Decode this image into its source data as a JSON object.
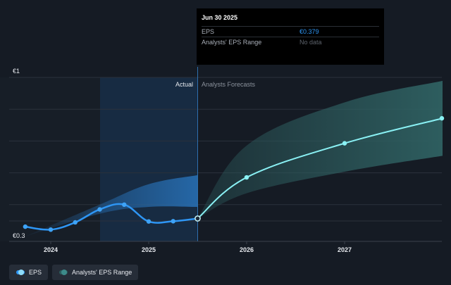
{
  "chart_data": {
    "type": "line",
    "currency": "€",
    "y_axis": {
      "max_label": "€1",
      "min_label": "€0.3",
      "ylim": [
        0.3,
        1.0
      ]
    },
    "x_ticks": [
      {
        "label": "2024",
        "year": 2024.0
      },
      {
        "label": "2025",
        "year": 2025.0
      },
      {
        "label": "2026",
        "year": 2026.0
      },
      {
        "label": "2027",
        "year": 2027.0
      }
    ],
    "xlim": [
      2023.5,
      2028.0
    ],
    "actual_label": "Actual",
    "forecast_label": "Analysts Forecasts",
    "divider_year": 2025.5,
    "shaded_start_year": 2024.5,
    "eps_series": {
      "name": "EPS",
      "actual": [
        {
          "year": 2023.74,
          "value": 0.343
        },
        {
          "year": 2024.0,
          "value": 0.33
        },
        {
          "year": 2024.25,
          "value": 0.362
        },
        {
          "year": 2024.5,
          "value": 0.419
        },
        {
          "year": 2024.75,
          "value": 0.44
        },
        {
          "year": 2025.0,
          "value": 0.366
        },
        {
          "year": 2025.25,
          "value": 0.367
        },
        {
          "year": 2025.5,
          "value": 0.379
        }
      ],
      "forecast": [
        {
          "year": 2025.5,
          "value": 0.379
        },
        {
          "year": 2026.0,
          "value": 0.56
        },
        {
          "year": 2027.0,
          "value": 0.71
        },
        {
          "year": 2028.0,
          "value": 0.82
        }
      ]
    },
    "past_range": {
      "upper": [
        {
          "year": 2023.74,
          "value": 0.3
        },
        {
          "year": 2024.5,
          "value": 0.44
        },
        {
          "year": 2025.0,
          "value": 0.53
        },
        {
          "year": 2025.5,
          "value": 0.57
        }
      ],
      "lower": [
        {
          "year": 2023.74,
          "value": 0.3
        },
        {
          "year": 2024.5,
          "value": 0.4
        },
        {
          "year": 2025.0,
          "value": 0.43
        },
        {
          "year": 2025.5,
          "value": 0.43
        }
      ]
    },
    "forecast_range": {
      "upper": [
        {
          "year": 2025.5,
          "value": 0.379
        },
        {
          "year": 2026.0,
          "value": 0.7
        },
        {
          "year": 2027.0,
          "value": 0.89
        },
        {
          "year": 2028.0,
          "value": 0.985
        }
      ],
      "lower": [
        {
          "year": 2025.5,
          "value": 0.379
        },
        {
          "year": 2026.0,
          "value": 0.49
        },
        {
          "year": 2027.0,
          "value": 0.585
        },
        {
          "year": 2028.0,
          "value": 0.655
        }
      ]
    },
    "grid": true
  },
  "tooltip": {
    "date": "Jun 30 2025",
    "eps_label": "EPS",
    "eps_value": "€0.379",
    "range_label": "Analysts' EPS Range",
    "range_value": "No data"
  },
  "legend": [
    {
      "label": "EPS",
      "color": "#2e96f5"
    },
    {
      "label": "Analysts' EPS Range",
      "color": "#2c5a5c"
    }
  ],
  "colors": {
    "background": "#151b24",
    "eps_actual": "#2e96f5",
    "eps_forecast": "#8af1f4",
    "range_forecast": "#2c5a5c",
    "range_past": "#2a7bc8"
  }
}
